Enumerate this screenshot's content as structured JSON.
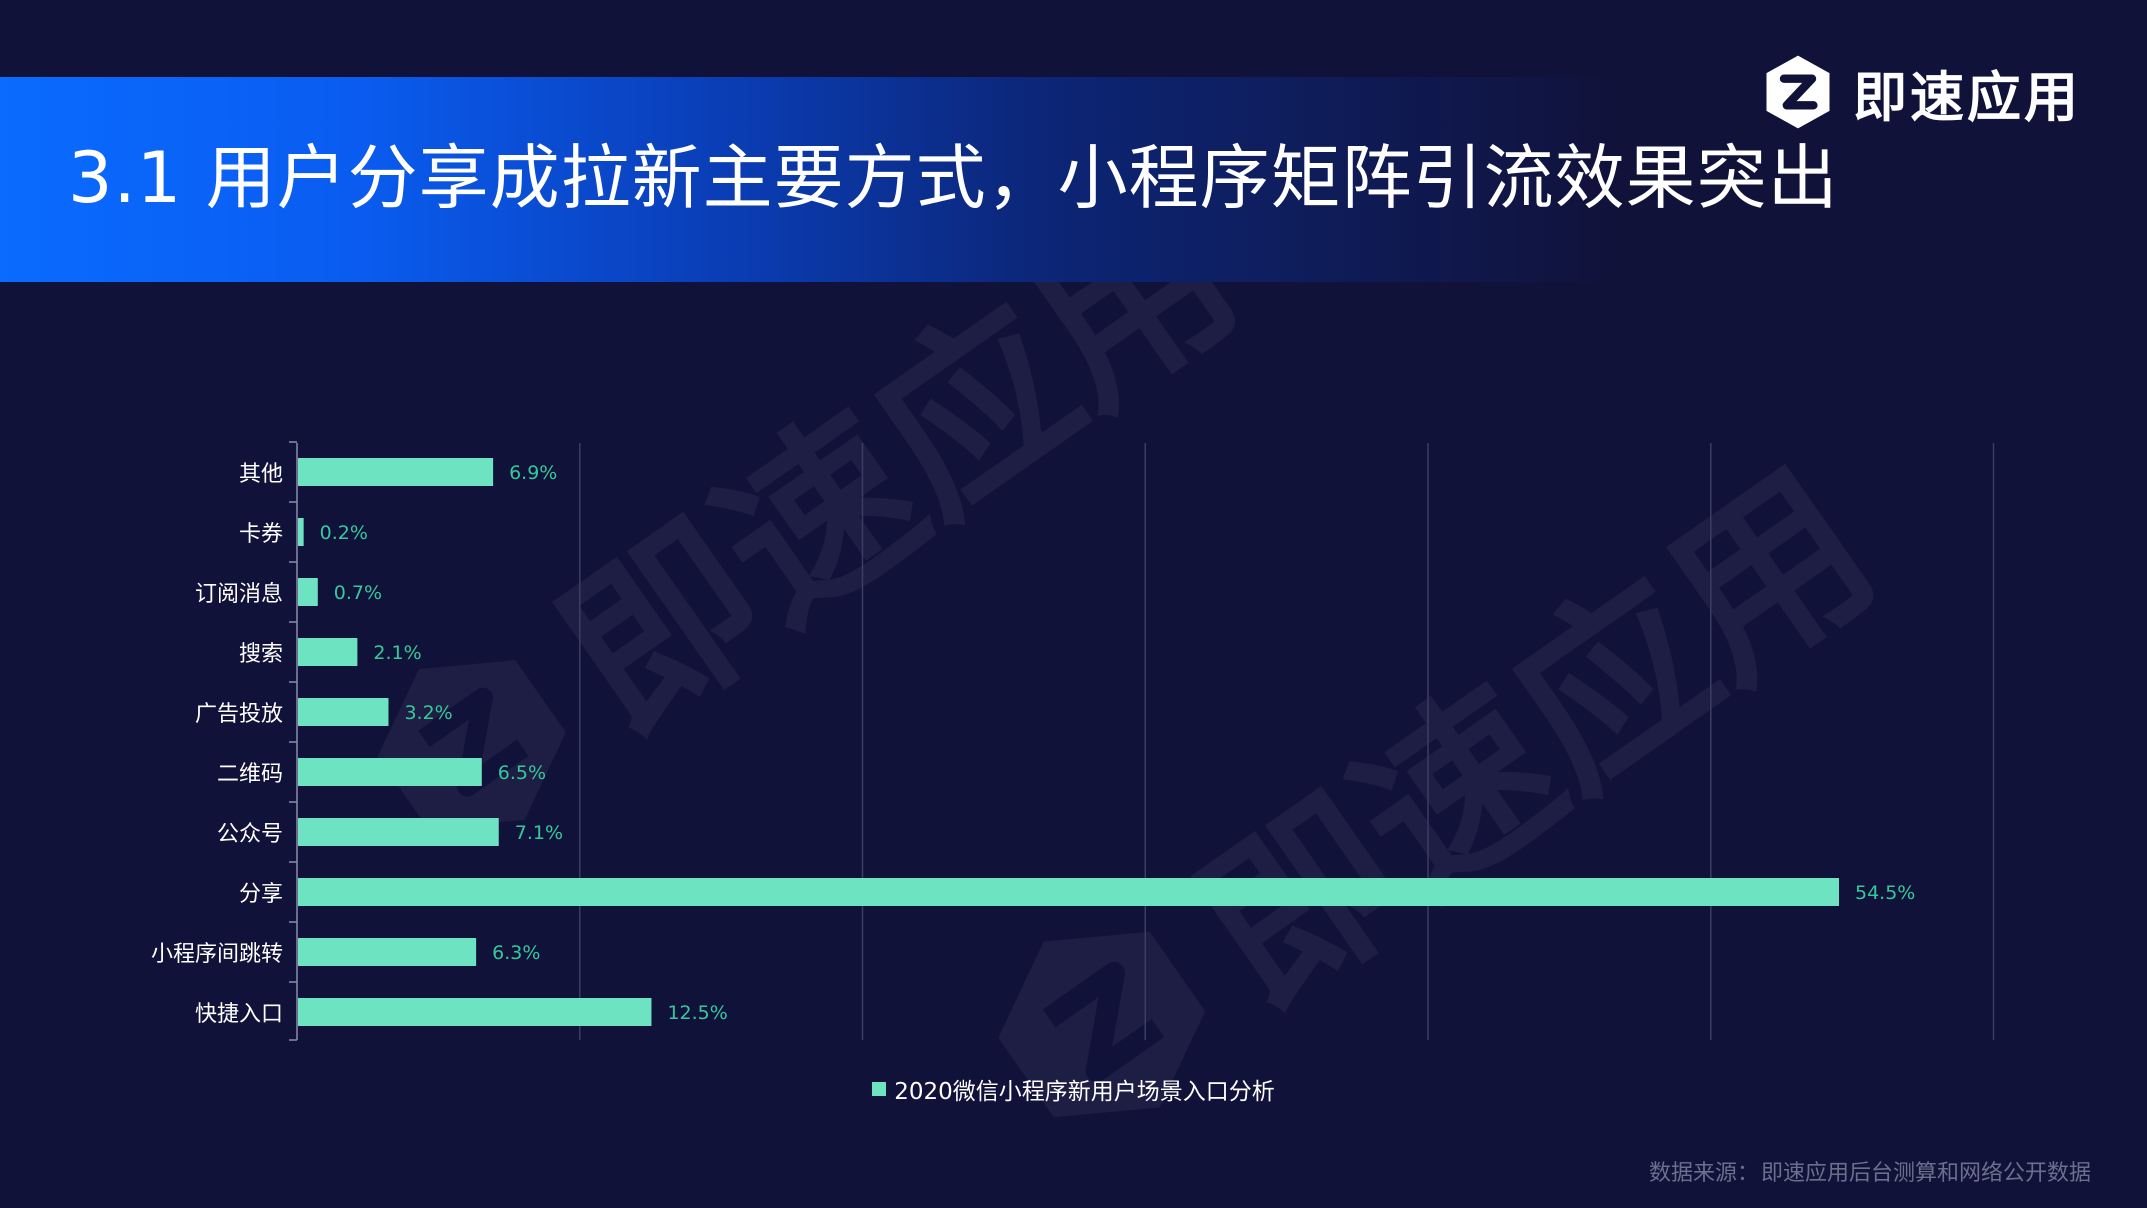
{
  "header": {
    "title": "3.1 用户分享成拉新主要方式，小程序矩阵引流效果突出",
    "brand_name": "即速应用"
  },
  "watermark": {
    "text": "即速应用"
  },
  "chart_data": {
    "type": "bar",
    "orientation": "horizontal",
    "categories": [
      "其他",
      "卡券",
      "订阅消息",
      "搜索",
      "广告投放",
      "二维码",
      "公众号",
      "分享",
      "小程序间跳转",
      "快捷入口"
    ],
    "series": [
      {
        "name": "2020微信小程序新用户场景入口分析",
        "values": [
          6.9,
          0.2,
          0.7,
          2.1,
          3.2,
          6.5,
          7.1,
          54.5,
          6.3,
          12.5
        ],
        "labels": [
          "6.9%",
          "0.2%",
          "0.7%",
          "2.1%",
          "3.2%",
          "6.5%",
          "7.1%",
          "54.5%",
          "6.3%",
          "12.5%"
        ]
      }
    ],
    "xlim": [
      0,
      60
    ],
    "grid": true,
    "legend_position": "bottom",
    "bar_color": "#6de3c2",
    "label_color": "#35c99a"
  },
  "legend": {
    "label": "2020微信小程序新用户场景入口分析"
  },
  "footer": {
    "source_prefix": "数据来源：",
    "source_text": "即速应用后台测算和网络公开数据"
  },
  "colors": {
    "background": "#11123a",
    "accent_blue": "#0a6bff",
    "bar": "#6de3c2",
    "grid": "#3a3d63",
    "source_text": "#6b6f8a"
  }
}
